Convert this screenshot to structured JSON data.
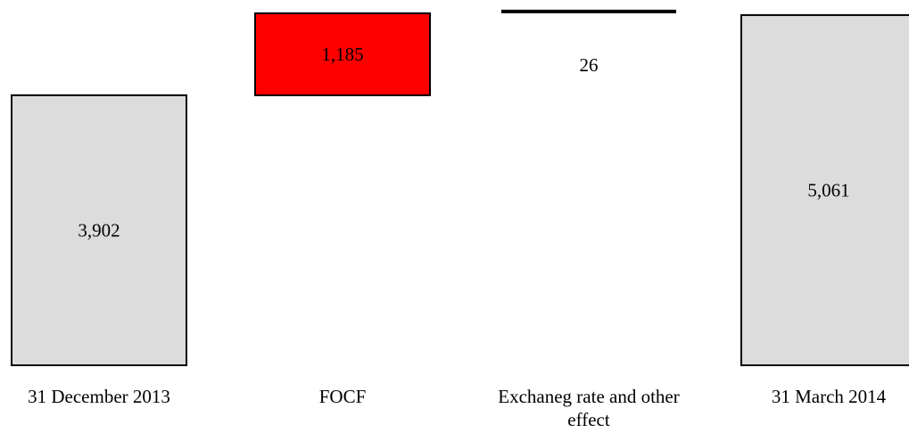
{
  "chart_data": {
    "type": "bar",
    "subtype": "waterfall",
    "categories": [
      "31 December 2013",
      "FOCF",
      "Exchaneg rate and other effect",
      "31 March 2014"
    ],
    "category_lines": [
      [
        "31 December 2013"
      ],
      [
        "FOCF"
      ],
      [
        "Exchaneg rate and other",
        "effect"
      ],
      [
        "31 March 2014"
      ]
    ],
    "values": [
      3902,
      1185,
      26,
      5061
    ],
    "value_labels": [
      "3,902",
      "1,185",
      "26",
      "5,061"
    ],
    "kinds": [
      "total",
      "delta",
      "delta",
      "total"
    ],
    "colors": {
      "total_fill": "#dcdcdc",
      "increase_fill": "#ff0000",
      "small_delta_line": "#000000",
      "stroke": "#000000"
    },
    "title": "",
    "xlabel": "",
    "ylabel": "",
    "ylim": [
      0,
      5150
    ],
    "grid": false,
    "legend": "none"
  }
}
